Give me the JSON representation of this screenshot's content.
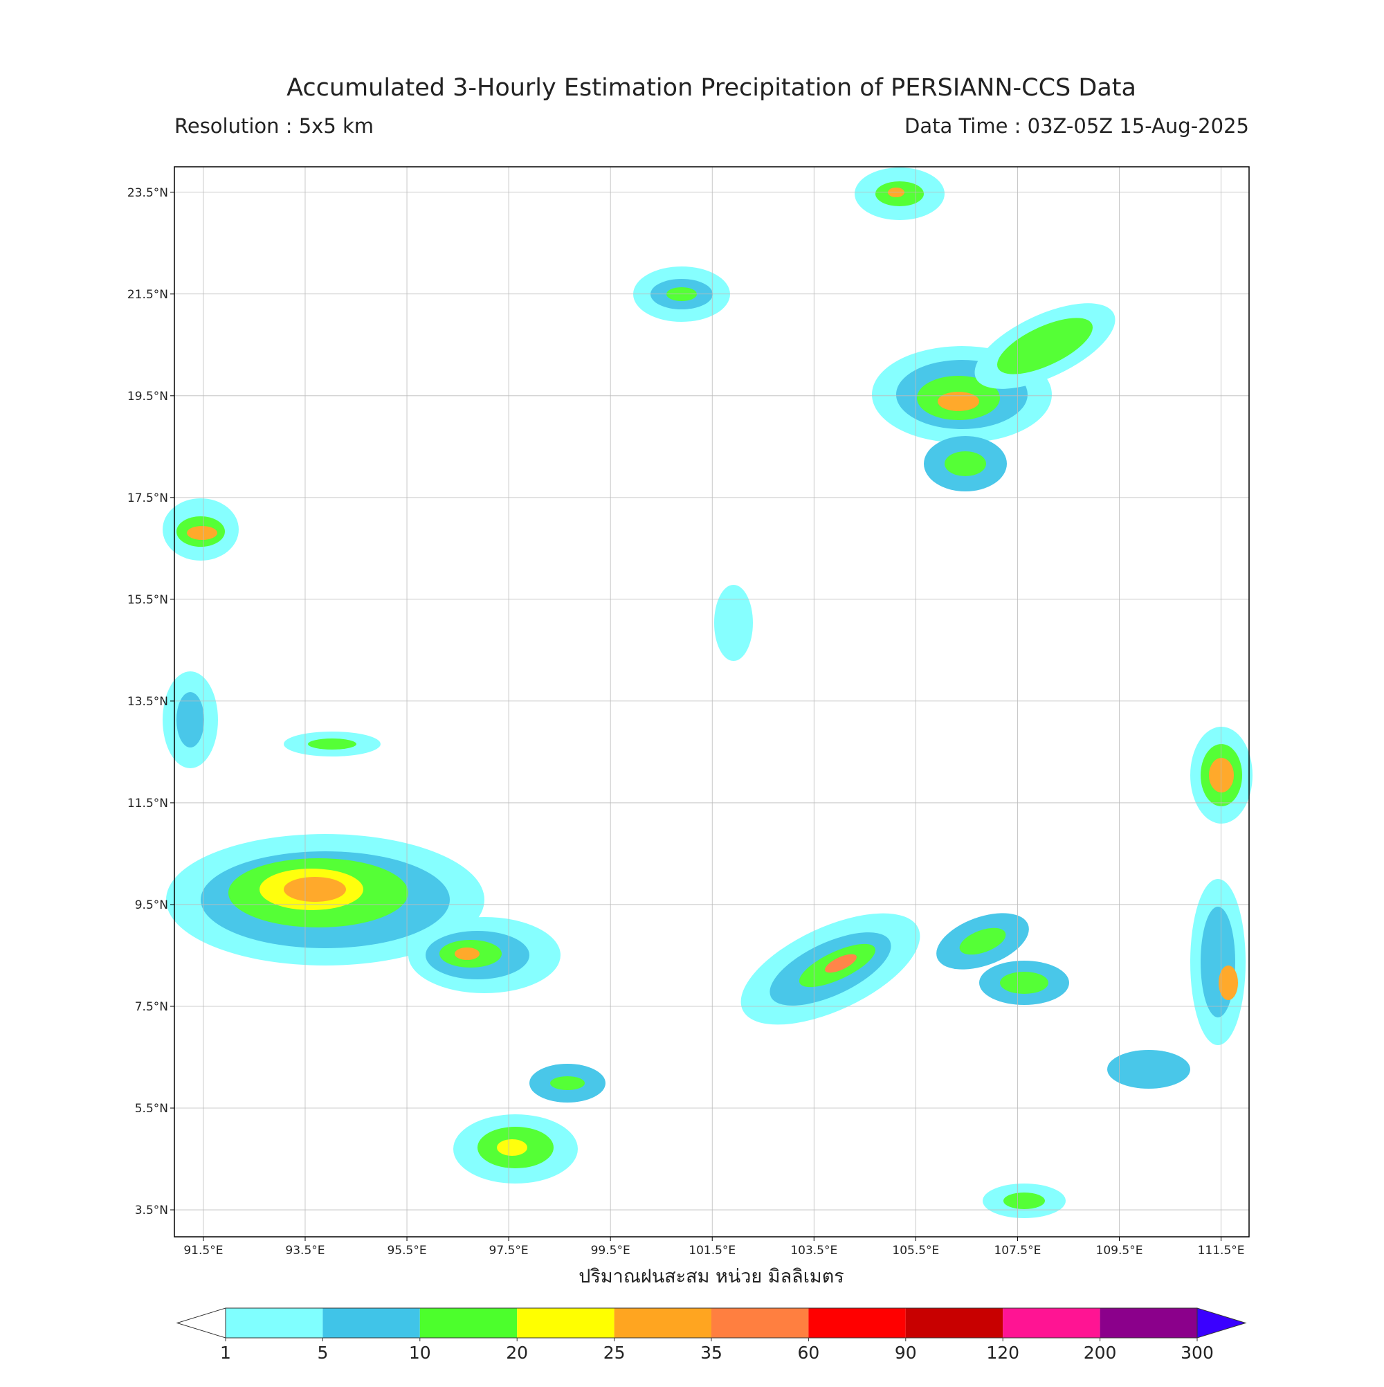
{
  "title": "Accumulated 3-Hourly Estimation Precipitation of PERSIANN-CCS Data",
  "resolution": "Resolution : 5x5 km",
  "data_time": "Data Time : 03Z-05Z 15-Aug-2025",
  "map": {
    "xlim": [
      90.93,
      112.05
    ],
    "ylim": [
      2.97,
      24.0
    ],
    "xticks": [
      {
        "value": 91.5,
        "label": "91.5°E"
      },
      {
        "value": 93.5,
        "label": "93.5°E"
      },
      {
        "value": 95.5,
        "label": "95.5°E"
      },
      {
        "value": 97.5,
        "label": "97.5°E"
      },
      {
        "value": 99.5,
        "label": "99.5°E"
      },
      {
        "value": 101.5,
        "label": "101.5°E"
      },
      {
        "value": 103.5,
        "label": "103.5°E"
      },
      {
        "value": 105.5,
        "label": "105.5°E"
      },
      {
        "value": 107.5,
        "label": "107.5°E"
      },
      {
        "value": 109.5,
        "label": "109.5°E"
      },
      {
        "value": 111.5,
        "label": "111.5°E"
      }
    ],
    "yticks": [
      {
        "value": 3.5,
        "label": "3.5°N"
      },
      {
        "value": 5.5,
        "label": "5.5°N"
      },
      {
        "value": 7.5,
        "label": "7.5°N"
      },
      {
        "value": 9.5,
        "label": "9.5°N"
      },
      {
        "value": 11.5,
        "label": "11.5°N"
      },
      {
        "value": 13.5,
        "label": "13.5°N"
      },
      {
        "value": 15.5,
        "label": "15.5°N"
      },
      {
        "value": 17.5,
        "label": "17.5°N"
      },
      {
        "value": 19.5,
        "label": "19.5°N"
      },
      {
        "value": 21.5,
        "label": "21.5°N"
      },
      {
        "value": 23.5,
        "label": "23.5°N"
      }
    ],
    "grid": true,
    "xlabel": "ปริมาณฝนสะสม หน่วย มิลลิเมตร"
  },
  "colorbar": {
    "levels": [
      1,
      5,
      10,
      20,
      25,
      35,
      60,
      90,
      120,
      200,
      300
    ],
    "colors": [
      "#80ffff",
      "#40c4e8",
      "#4cff2c",
      "#ffff00",
      "#ffa520",
      "#ff7f40",
      "#ff0000",
      "#c80000",
      "#ff1493",
      "#8b008b"
    ],
    "under_color": "#ffffff",
    "over_color": "#3a00ff"
  }
}
